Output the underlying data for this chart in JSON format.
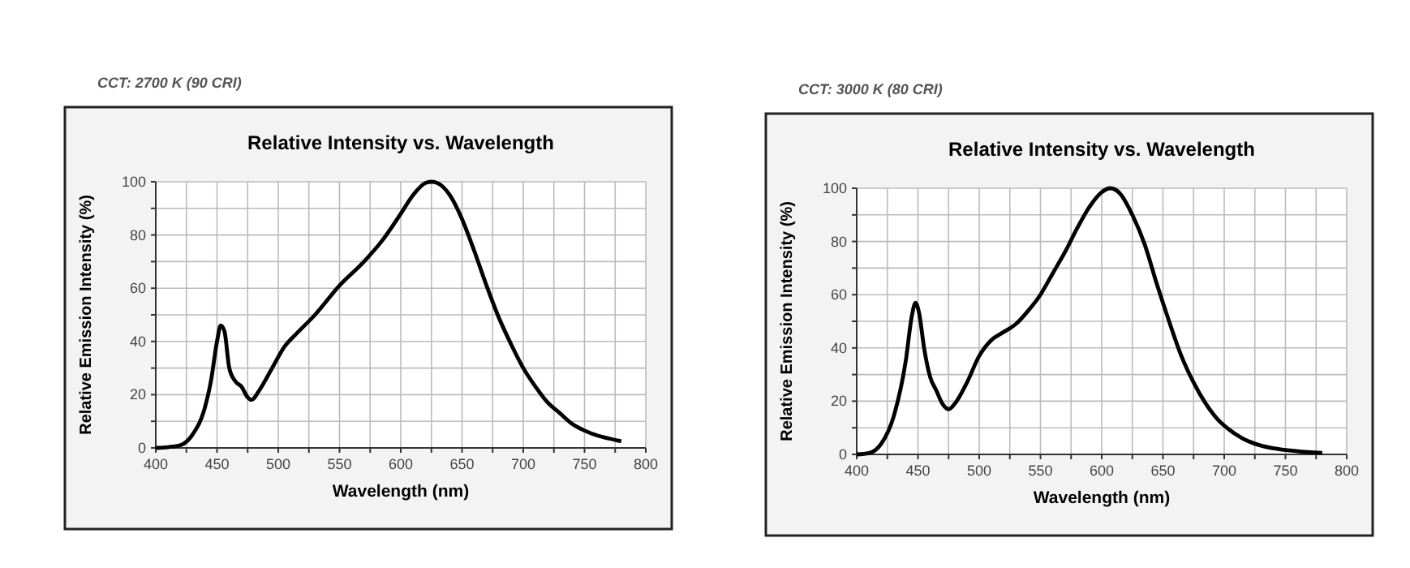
{
  "chart_data": [
    {
      "type": "line",
      "title": "CCT: 2700 K (90 CRI)",
      "subtitle": "Relative Intensity vs. Wavelength",
      "xlabel": "Wavelength (nm)",
      "ylabel": "Relative Emission Intensity (%)",
      "xlim": [
        400,
        800
      ],
      "ylim": [
        0,
        100
      ],
      "xticks": [
        400,
        {
          "value": 425,
          "label": null
        },
        450,
        {
          "value": 475,
          "label": null
        },
        500,
        {
          "value": 525,
          "label": null
        },
        550,
        {
          "value": 575,
          "label": null
        },
        600,
        {
          "value": 625,
          "label": null
        },
        650,
        {
          "value": 675,
          "label": null
        },
        700,
        {
          "value": 725,
          "label": null
        },
        750,
        {
          "value": 775,
          "label": null
        },
        800
      ],
      "yticks": [
        0,
        {
          "value": 10,
          "label": null
        },
        20,
        {
          "value": 30,
          "label": null
        },
        40,
        {
          "value": 50,
          "label": null
        },
        60,
        {
          "value": 70,
          "label": null
        },
        80,
        {
          "value": 90,
          "label": null
        },
        100
      ],
      "grid": true,
      "line_style": "solid",
      "marker": "none",
      "series": [
        {
          "color": "#000000",
          "x": [
            400,
            410,
            420,
            430,
            440,
            445,
            450,
            453,
            456,
            460,
            465,
            470,
            475,
            478,
            485,
            495,
            505,
            515,
            530,
            550,
            570,
            585,
            600,
            610,
            620,
            625,
            630,
            640,
            650,
            660,
            670,
            680,
            690,
            700,
            710,
            720,
            730,
            740,
            750,
            760,
            770,
            780
          ],
          "values": [
            0,
            0.3,
            1,
            5,
            15,
            25,
            40,
            46,
            44,
            30,
            25,
            23,
            19,
            18,
            22,
            30,
            38,
            43,
            50,
            61,
            70,
            78,
            88,
            95,
            99.5,
            100,
            99.5,
            95,
            86,
            74,
            61,
            49,
            39,
            30,
            23,
            17,
            13,
            9,
            6.5,
            4.7,
            3.5,
            2.5
          ]
        }
      ]
    },
    {
      "type": "line",
      "title": "CCT: 3000 K (80 CRI)",
      "subtitle": "Relative Intensity vs. Wavelength",
      "xlabel": "Wavelength (nm)",
      "ylabel": "Relative Emission Intensity (%)",
      "xlim": [
        400,
        800
      ],
      "ylim": [
        0,
        100
      ],
      "xticks": [
        400,
        {
          "value": 425,
          "label": null
        },
        450,
        {
          "value": 475,
          "label": null
        },
        500,
        {
          "value": 525,
          "label": null
        },
        550,
        {
          "value": 575,
          "label": null
        },
        600,
        {
          "value": 625,
          "label": null
        },
        650,
        {
          "value": 675,
          "label": null
        },
        700,
        {
          "value": 725,
          "label": null
        },
        750,
        {
          "value": 775,
          "label": null
        },
        800
      ],
      "yticks": [
        0,
        {
          "value": 10,
          "label": null
        },
        20,
        {
          "value": 30,
          "label": null
        },
        40,
        {
          "value": 50,
          "label": null
        },
        60,
        {
          "value": 70,
          "label": null
        },
        80,
        {
          "value": 90,
          "label": null
        },
        100
      ],
      "grid": true,
      "line_style": "solid",
      "marker": "none",
      "series": [
        {
          "color": "#000000",
          "x": [
            400,
            410,
            420,
            430,
            440,
            445,
            448,
            451,
            455,
            460,
            465,
            470,
            475,
            480,
            490,
            500,
            510,
            520,
            530,
            540,
            550,
            560,
            570,
            580,
            590,
            600,
            607,
            615,
            625,
            635,
            645,
            655,
            665,
            675,
            685,
            695,
            705,
            715,
            725,
            740,
            760,
            780
          ],
          "values": [
            0,
            0.5,
            4,
            14,
            35,
            52,
            57,
            53,
            40,
            29,
            24,
            19,
            17,
            19,
            27,
            37,
            43,
            46,
            49,
            54,
            60,
            68,
            76,
            85,
            93,
            98.5,
            100,
            98,
            90,
            79,
            64,
            50,
            37,
            27,
            19,
            13,
            9,
            6,
            4,
            2.3,
            1.2,
            0.6
          ]
        }
      ]
    }
  ]
}
